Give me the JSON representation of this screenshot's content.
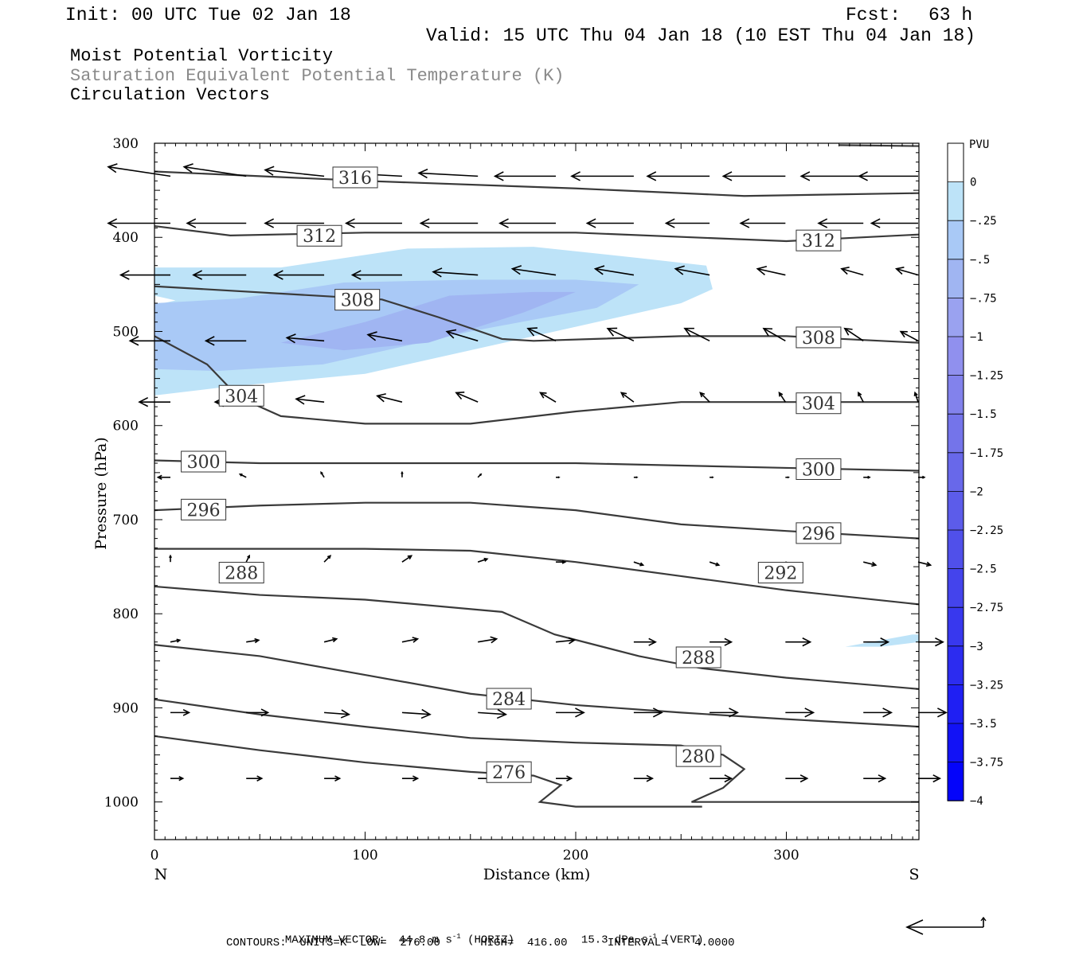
{
  "header": {
    "init": "Init: 00 UTC Tue 02 Jan 18",
    "fcst_label": "Fcst:",
    "fcst_value": "63 h",
    "valid": "Valid: 15 UTC Thu 04 Jan 18 (10 EST Thu 04 Jan 18)",
    "field_1": "Moist Potential Vorticity",
    "field_2": "Saturation Equivalent Potential Temperature (K)",
    "field_3": "Circulation Vectors"
  },
  "footer": {
    "max_vector_label": "MAXIMUM VECTOR:",
    "max_horiz_value": "44.8 m s",
    "max_horiz_exp": "-1",
    "max_horiz_unit": "(HORIZ)",
    "max_vert_value": "15.3 dPa s",
    "max_vert_exp": "-1",
    "max_vert_unit": "(VERT)",
    "contours": "CONTOURS:  UNITS=K  LOW=  276.00      HIGH=  416.00      INTERVAL=    4.0000"
  },
  "colors": {
    "pv_light": "#bde3f8",
    "pv_medium": "#a9c9f6",
    "pv_dark": "#a0b5f2",
    "contour": "#3a3a3a"
  },
  "chart_data": {
    "type": "cross-section",
    "xlabel": "Distance (km)",
    "ylabel": "Pressure (hPa)",
    "xlim": [
      0,
      363
    ],
    "ylim": [
      1040,
      300
    ],
    "x_ticks": [
      0,
      100,
      200,
      300
    ],
    "y_ticks": [
      300,
      400,
      500,
      600,
      700,
      800,
      900,
      1000
    ],
    "x_end_labels": {
      "left": "N",
      "right": "S"
    },
    "colorbar": {
      "title": "PVU",
      "ticks": [
        "0",
        "-.25",
        "-.5",
        "-.75",
        "-1",
        "-1.25",
        "-1.5",
        "-1.75",
        "-2",
        "-2.25",
        "-2.5",
        "-2.75",
        "-3",
        "-3.25",
        "-3.5",
        "-3.75",
        "-4"
      ],
      "colors": [
        "#ffffff",
        "#bde3f8",
        "#a9c9f6",
        "#a0b5f2",
        "#9aa2f0",
        "#9090ee",
        "#8282ec",
        "#7474ea",
        "#6868ea",
        "#5c5cea",
        "#5050ea",
        "#4444ec",
        "#3838ee",
        "#2c2cf0",
        "#1f1ff3",
        "#1212f6",
        "#0404fa"
      ]
    },
    "pv_regions": [
      {
        "level": -0.25,
        "points": [
          [
            0,
            462
          ],
          [
            10,
            467
          ],
          [
            0,
            472
          ],
          [
            0,
            568
          ],
          [
            30,
            560
          ],
          [
            100,
            545
          ],
          [
            150,
            520
          ],
          [
            200,
            495
          ],
          [
            250,
            470
          ],
          [
            265,
            455
          ],
          [
            262,
            430
          ],
          [
            230,
            422
          ],
          [
            180,
            410
          ],
          [
            120,
            412
          ],
          [
            60,
            432
          ],
          [
            0,
            432
          ]
        ]
      },
      {
        "level": -0.5,
        "points": [
          [
            0,
            470
          ],
          [
            40,
            465
          ],
          [
            90,
            448
          ],
          [
            150,
            445
          ],
          [
            200,
            445
          ],
          [
            230,
            450
          ],
          [
            210,
            475
          ],
          [
            150,
            500
          ],
          [
            80,
            535
          ],
          [
            30,
            542
          ],
          [
            0,
            540
          ]
        ]
      },
      {
        "level": -0.75,
        "points": [
          [
            60,
            512
          ],
          [
            100,
            490
          ],
          [
            140,
            462
          ],
          [
            180,
            458
          ],
          [
            200,
            458
          ],
          [
            175,
            480
          ],
          [
            130,
            512
          ],
          [
            90,
            520
          ]
        ]
      },
      {
        "level": -0.25,
        "points": [
          [
            328,
            835
          ],
          [
            360,
            822
          ],
          [
            363,
            822
          ],
          [
            363,
            830
          ],
          [
            345,
            835
          ]
        ]
      }
    ],
    "theta_contours": [
      {
        "value": 316,
        "points": [
          [
            0,
            330
          ],
          [
            100,
            340
          ],
          [
            200,
            348
          ],
          [
            280,
            356
          ],
          [
            363,
            353
          ]
        ]
      },
      {
        "value": 312,
        "points": [
          [
            0,
            388
          ],
          [
            36,
            398
          ],
          [
            100,
            395
          ],
          [
            200,
            395
          ],
          [
            300,
            404
          ],
          [
            363,
            397
          ]
        ]
      },
      {
        "value": 308,
        "points": [
          [
            0,
            452
          ],
          [
            108,
            466
          ],
          [
            135,
            485
          ],
          [
            165,
            508
          ],
          [
            180,
            510
          ],
          [
            250,
            505
          ],
          [
            300,
            505
          ],
          [
            363,
            512
          ]
        ]
      },
      {
        "value": 304,
        "points": [
          [
            0,
            505
          ],
          [
            25,
            535
          ],
          [
            40,
            570
          ],
          [
            60,
            590
          ],
          [
            100,
            598
          ],
          [
            150,
            598
          ],
          [
            200,
            585
          ],
          [
            250,
            575
          ],
          [
            300,
            575
          ],
          [
            363,
            575
          ]
        ]
      },
      {
        "value": 300,
        "points": [
          [
            0,
            637
          ],
          [
            50,
            640
          ],
          [
            100,
            640
          ],
          [
            200,
            640
          ],
          [
            300,
            645
          ],
          [
            363,
            648
          ]
        ]
      },
      {
        "value": 296,
        "points": [
          [
            0,
            690
          ],
          [
            50,
            685
          ],
          [
            100,
            682
          ],
          [
            150,
            682
          ],
          [
            200,
            690
          ],
          [
            250,
            705
          ],
          [
            300,
            712
          ],
          [
            363,
            720
          ]
        ]
      },
      {
        "value": 292,
        "points": [
          [
            0,
            731
          ],
          [
            100,
            731
          ],
          [
            150,
            733
          ],
          [
            200,
            745
          ],
          [
            250,
            760
          ],
          [
            300,
            775
          ],
          [
            363,
            790
          ]
        ]
      },
      {
        "value": 288,
        "points": [
          [
            0,
            771
          ],
          [
            50,
            780
          ],
          [
            100,
            785
          ],
          [
            165,
            798
          ],
          [
            190,
            822
          ],
          [
            230,
            845
          ],
          [
            260,
            858
          ],
          [
            300,
            868
          ],
          [
            363,
            880
          ]
        ]
      },
      {
        "value": 284,
        "points": [
          [
            0,
            833
          ],
          [
            50,
            845
          ],
          [
            100,
            865
          ],
          [
            150,
            885
          ],
          [
            200,
            897
          ],
          [
            250,
            905
          ],
          [
            300,
            912
          ],
          [
            363,
            920
          ]
        ]
      },
      {
        "value": 280,
        "points": [
          [
            0,
            891
          ],
          [
            50,
            907
          ],
          [
            100,
            920
          ],
          [
            150,
            932
          ],
          [
            200,
            937
          ],
          [
            250,
            940
          ],
          [
            270,
            950
          ],
          [
            280,
            965
          ],
          [
            270,
            985
          ],
          [
            255,
            1000
          ],
          [
            363,
            1000
          ]
        ]
      },
      {
        "value": 276,
        "points": [
          [
            0,
            930
          ],
          [
            50,
            945
          ],
          [
            100,
            958
          ],
          [
            150,
            968
          ],
          [
            180,
            972
          ],
          [
            193,
            982
          ],
          [
            183,
            1000
          ],
          [
            200,
            1005
          ],
          [
            260,
            1005
          ]
        ]
      }
    ],
    "theta_labels": [
      {
        "value": 316,
        "x": 90,
        "p": 338
      },
      {
        "value": 312,
        "x": 73,
        "p": 400
      },
      {
        "value": 312,
        "x": 310,
        "p": 405
      },
      {
        "value": 308,
        "x": 91,
        "p": 468
      },
      {
        "value": 308,
        "x": 310,
        "p": 508
      },
      {
        "value": 304,
        "x": 36,
        "p": 570
      },
      {
        "value": 304,
        "x": 310,
        "p": 578
      },
      {
        "value": 300,
        "x": 18,
        "p": 640
      },
      {
        "value": 300,
        "x": 310,
        "p": 648
      },
      {
        "value": 296,
        "x": 18,
        "p": 691
      },
      {
        "value": 296,
        "x": 310,
        "p": 716
      },
      {
        "value": 292,
        "x": 292,
        "p": 758
      },
      {
        "value": 288,
        "x": 36,
        "p": 758
      },
      {
        "value": 288,
        "x": 253,
        "p": 848
      },
      {
        "value": 284,
        "x": 163,
        "p": 892
      },
      {
        "value": 280,
        "x": 253,
        "p": 953
      },
      {
        "value": 276,
        "x": 163,
        "p": 970
      }
    ],
    "wind_rows": [
      {
        "p": 335,
        "u": [
          -1,
          -1,
          -0.95,
          -0.95,
          -0.95,
          -0.98,
          -1,
          -1,
          -1,
          -1,
          -0.95,
          -0.9
        ],
        "w": [
          0.15,
          0.15,
          0.1,
          0.05,
          0.05,
          0,
          0,
          0,
          0,
          0,
          0,
          0
        ]
      },
      {
        "p": 385,
        "u": [
          -1,
          -0.95,
          -0.95,
          -0.9,
          -0.92,
          -0.9,
          -0.75,
          -0.7,
          -0.72,
          -0.72,
          -0.75,
          -0.7
        ],
        "w": [
          0,
          0,
          0,
          0,
          0,
          0,
          0,
          0,
          0,
          0,
          0,
          0
        ]
      },
      {
        "p": 440,
        "u": [
          -0.8,
          -0.85,
          -0.8,
          -0.8,
          -0.72,
          -0.7,
          -0.62,
          -0.55,
          -0.45,
          -0.35,
          -0.35,
          -0.3
        ],
        "w": [
          0,
          0,
          0,
          0,
          0.05,
          0.1,
          0.1,
          0.1,
          0.1,
          0.1,
          0.1,
          0.12
        ]
      },
      {
        "p": 510,
        "u": [
          -0.65,
          -0.65,
          -0.6,
          -0.55,
          -0.5,
          -0.45,
          -0.42,
          -0.4,
          -0.35,
          -0.3,
          -0.28,
          -0.25
        ],
        "w": [
          0,
          0,
          0.05,
          0.1,
          0.15,
          0.2,
          0.2,
          0.2,
          0.2,
          0.2,
          0.15,
          0.1
        ]
      },
      {
        "p": 575,
        "u": [
          -0.5,
          -0.5,
          -0.45,
          -0.4,
          -0.35,
          -0.25,
          -0.2,
          -0.15,
          -0.1,
          -0.08,
          -0.05,
          -0.03
        ],
        "w": [
          0,
          0,
          0.05,
          0.1,
          0.15,
          0.15,
          0.15,
          0.15,
          0.15,
          0.15,
          0.15,
          0.15
        ]
      },
      {
        "p": 655,
        "u": [
          -0.2,
          -0.1,
          -0.05,
          0,
          0.05,
          0.05,
          0.05,
          0.05,
          0.05,
          0.1,
          0.1,
          0.1
        ],
        "w": [
          0,
          0.05,
          0.08,
          0.08,
          0.05,
          0,
          0,
          0,
          0,
          0,
          0,
          0
        ]
      },
      {
        "p": 745,
        "u": [
          0,
          0.05,
          0.1,
          0.15,
          0.15,
          0.15,
          0.15,
          0.15,
          0.15,
          0.2,
          0.2,
          0.2
        ],
        "w": [
          0.1,
          0.1,
          0.1,
          0.1,
          0.05,
          0,
          -0.05,
          -0.05,
          -0.05,
          -0.05,
          -0.05,
          -0.05
        ]
      },
      {
        "p": 830,
        "u": [
          0.15,
          0.2,
          0.2,
          0.25,
          0.3,
          0.3,
          0.35,
          0.35,
          0.4,
          0.4,
          0.4,
          0.4
        ],
        "w": [
          0.03,
          0.03,
          0.05,
          0.05,
          0.05,
          0.03,
          0,
          0,
          0,
          0,
          0,
          0
        ]
      },
      {
        "p": 905,
        "u": [
          0.3,
          0.35,
          0.4,
          0.45,
          0.45,
          0.45,
          0.45,
          0.45,
          0.45,
          0.45,
          0.45,
          0.45
        ],
        "w": [
          0,
          0,
          -0.03,
          -0.03,
          -0.03,
          0,
          0,
          0,
          0,
          0,
          0,
          0
        ]
      },
      {
        "p": 975,
        "u": [
          0.2,
          0.25,
          0.25,
          0.25,
          0.25,
          0.25,
          0.3,
          0.35,
          0.35,
          0.35,
          0.35,
          0.35
        ],
        "w": [
          0,
          0,
          0,
          0,
          0,
          0,
          0,
          0,
          0,
          0,
          0,
          0
        ]
      }
    ],
    "wind_x_km": [
      0,
      36,
      73,
      110,
      146,
      183,
      220,
      256,
      292,
      329,
      355,
      363
    ],
    "reference_vector": {
      "u": -1,
      "w": 0.15
    }
  }
}
